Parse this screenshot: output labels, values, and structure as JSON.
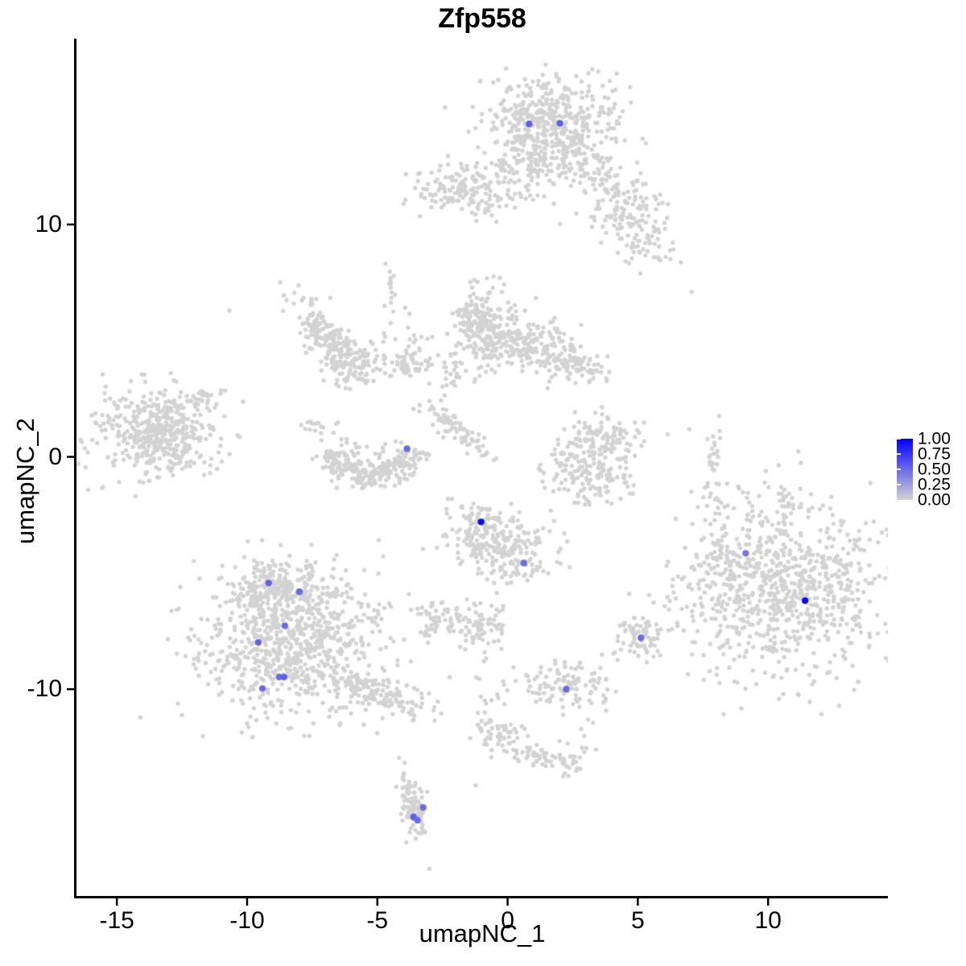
{
  "chart_data": {
    "type": "scatter",
    "title": "Zfp558",
    "xlabel": "umapNC_1",
    "ylabel": "umapNC_2",
    "xlim": [
      -16.55,
      14.6
    ],
    "ylim": [
      -18.9,
      18.0
    ],
    "grid": false,
    "xticks": [
      {
        "value": -15,
        "label": "-15"
      },
      {
        "value": -10,
        "label": "-10"
      },
      {
        "value": -5,
        "label": "-5"
      },
      {
        "value": 0,
        "label": "0"
      },
      {
        "value": 5,
        "label": "5"
      },
      {
        "value": 10,
        "label": "10"
      }
    ],
    "yticks": [
      {
        "value": 10,
        "label": "10"
      },
      {
        "value": 0,
        "label": "0"
      },
      {
        "value": -10,
        "label": "-10"
      }
    ],
    "legend": {
      "position": "right",
      "labels": [
        "1.00",
        "0.75",
        "0.50",
        "0.25",
        "0.00"
      ],
      "values": [
        1.0,
        0.75,
        0.5,
        0.25,
        0.0
      ],
      "low_color": "#D3D3D3",
      "high_color": "#0000FF"
    },
    "point_color_zero": "#D3D3D3",
    "clusters": [
      {
        "shape": "gauss",
        "cx": 1.7,
        "cy": 14.4,
        "sx": 1.25,
        "sy": 1.05,
        "rho": 0,
        "n": 480
      },
      {
        "shape": "gauss",
        "cx": 0.9,
        "cy": 12.6,
        "sx": 0.8,
        "sy": 0.5,
        "rho": 0,
        "n": 70
      },
      {
        "shape": "gauss",
        "cx": 3.4,
        "cy": 12.1,
        "sx": 0.7,
        "sy": 0.55,
        "rho": -0.4,
        "n": 70
      },
      {
        "shape": "gauss",
        "cx": 4.35,
        "cy": 10.4,
        "sx": 0.8,
        "sy": 0.75,
        "rho": 0,
        "n": 110
      },
      {
        "shape": "gauss",
        "cx": 5.3,
        "cy": 9.3,
        "sx": 0.5,
        "sy": 0.45,
        "rho": 0,
        "n": 45
      },
      {
        "shape": "gauss",
        "cx": -1.75,
        "cy": 11.5,
        "sx": 1.0,
        "sy": 0.55,
        "rho": 0,
        "n": 150
      },
      {
        "shape": "gauss",
        "cx": 0.3,
        "cy": 11.2,
        "sx": 0.8,
        "sy": 0.35,
        "rho": 0,
        "n": 22
      },
      {
        "shape": "gauss",
        "cx": -7.1,
        "cy": 5.3,
        "sx": 0.6,
        "sy": 0.8,
        "rho": -0.75,
        "n": 150
      },
      {
        "shape": "gauss",
        "cx": -5.95,
        "cy": 4.15,
        "sx": 0.55,
        "sy": 0.5,
        "rho": 0,
        "n": 100
      },
      {
        "shape": "gauss",
        "cx": -4.0,
        "cy": 3.95,
        "sx": 0.7,
        "sy": 0.3,
        "rho": 0,
        "n": 55
      },
      {
        "shape": "gauss",
        "cx": -4.55,
        "cy": 6.9,
        "sx": 0.16,
        "sy": 0.9,
        "rho": 0.3,
        "n": 18
      },
      {
        "shape": "gauss",
        "cx": -3.6,
        "cy": 5.0,
        "sx": 0.35,
        "sy": 0.7,
        "rho": -0.5,
        "n": 16
      },
      {
        "shape": "gauss",
        "cx": -0.95,
        "cy": 5.6,
        "sx": 0.6,
        "sy": 0.85,
        "rho": 0,
        "n": 240
      },
      {
        "shape": "gauss",
        "cx": 1.1,
        "cy": 4.75,
        "sx": 0.95,
        "sy": 0.6,
        "rho": -0.35,
        "n": 210
      },
      {
        "shape": "gauss",
        "cx": 2.8,
        "cy": 3.9,
        "sx": 0.5,
        "sy": 0.35,
        "rho": -0.3,
        "n": 55
      },
      {
        "shape": "gauss",
        "cx": -2.15,
        "cy": 3.6,
        "sx": 0.25,
        "sy": 0.5,
        "rho": 0,
        "n": 22
      },
      {
        "shape": "gauss",
        "cx": -3.1,
        "cy": 2.1,
        "sx": 0.3,
        "sy": 0.25,
        "rho": 0,
        "n": 8
      },
      {
        "shape": "gauss",
        "cx": -2.35,
        "cy": 1.5,
        "sx": 0.3,
        "sy": 0.3,
        "rho": 0,
        "n": 12
      },
      {
        "shape": "gauss",
        "cx": -1.7,
        "cy": 0.95,
        "sx": 0.6,
        "sy": 0.55,
        "rho": -0.85,
        "n": 55
      },
      {
        "shape": "arc",
        "cx": -5.3,
        "cy": 0.4,
        "rx": 1.5,
        "ry": 1.25,
        "a0": 185,
        "a1": 355,
        "jr": 0.22,
        "n": 240
      },
      {
        "shape": "gauss",
        "cx": -7.0,
        "cy": 1.2,
        "sx": 0.55,
        "sy": 0.3,
        "rho": 0,
        "n": 18
      },
      {
        "shape": "gauss",
        "cx": -5.3,
        "cy": 0.1,
        "sx": 0.8,
        "sy": 0.5,
        "rho": 0,
        "n": 30
      },
      {
        "shape": "gauss",
        "cx": -13.55,
        "cy": 1.15,
        "sx": 1.15,
        "sy": 0.9,
        "rho": 0,
        "n": 420
      },
      {
        "shape": "gauss",
        "cx": -11.8,
        "cy": 2.5,
        "sx": 0.5,
        "sy": 0.35,
        "rho": 0.6,
        "n": 28
      },
      {
        "shape": "gauss",
        "cx": -12.4,
        "cy": -0.2,
        "sx": 0.6,
        "sy": 0.2,
        "rho": 0,
        "n": 20
      },
      {
        "shape": "gauss",
        "cx": 3.5,
        "cy": 0.7,
        "sx": 0.9,
        "sy": 0.55,
        "rho": 0.3,
        "n": 130
      },
      {
        "shape": "gauss",
        "cx": 3.1,
        "cy": -0.85,
        "sx": 0.8,
        "sy": 0.55,
        "rho": 0,
        "n": 130
      },
      {
        "shape": "gauss",
        "cx": 7.9,
        "cy": -0.3,
        "sx": 0.14,
        "sy": 1.0,
        "rho": 0.3,
        "n": 30
      },
      {
        "shape": "gauss",
        "cx": -1.0,
        "cy": -2.75,
        "sx": 0.45,
        "sy": 0.4,
        "rho": 0,
        "n": 55
      },
      {
        "shape": "gauss",
        "cx": -0.3,
        "cy": -3.95,
        "sx": 1.05,
        "sy": 0.85,
        "rho": -0.3,
        "n": 220
      },
      {
        "shape": "gauss",
        "cx": 10.6,
        "cy": -5.7,
        "sx": 1.95,
        "sy": 1.85,
        "rho": 0,
        "n": 850
      },
      {
        "shape": "gauss",
        "cx": 9.9,
        "cy": -2.3,
        "sx": 1.3,
        "sy": 0.6,
        "rho": 0,
        "n": 45
      },
      {
        "shape": "gauss",
        "cx": 8.3,
        "cy": -4.4,
        "sx": 0.6,
        "sy": 0.8,
        "rho": 0,
        "n": 40
      },
      {
        "shape": "gauss",
        "cx": -8.35,
        "cy": -7.9,
        "sx": 1.8,
        "sy": 1.6,
        "rho": 0,
        "n": 820
      },
      {
        "shape": "gauss",
        "cx": -8.85,
        "cy": -5.6,
        "sx": 0.95,
        "sy": 0.65,
        "rho": 0,
        "n": 170
      },
      {
        "shape": "gauss",
        "cx": -5.0,
        "cy": -10.2,
        "sx": 1.15,
        "sy": 0.5,
        "rho": -0.75,
        "n": 140
      },
      {
        "shape": "gauss",
        "cx": -2.65,
        "cy": -7.0,
        "sx": 0.5,
        "sy": 0.45,
        "rho": 0,
        "n": 60
      },
      {
        "shape": "gauss",
        "cx": -1.0,
        "cy": -7.2,
        "sx": 0.55,
        "sy": 0.5,
        "rho": 0,
        "n": 70
      },
      {
        "shape": "gauss",
        "cx": 5.2,
        "cy": -7.8,
        "sx": 0.55,
        "sy": 0.6,
        "rho": 0.3,
        "n": 55
      },
      {
        "shape": "gauss",
        "cx": 4.85,
        "cy": -7.3,
        "sx": 0.3,
        "sy": 0.25,
        "rho": 0,
        "n": 15
      },
      {
        "shape": "gauss",
        "cx": 2.3,
        "cy": -9.85,
        "sx": 0.95,
        "sy": 0.55,
        "rho": 0,
        "n": 115
      },
      {
        "shape": "gauss",
        "cx": -0.8,
        "cy": -11.0,
        "sx": 0.3,
        "sy": 1.0,
        "rho": 0,
        "n": 28
      },
      {
        "shape": "gauss",
        "cx": -0.2,
        "cy": -12.05,
        "sx": 0.5,
        "sy": 0.4,
        "rho": 0,
        "n": 35
      },
      {
        "shape": "gauss",
        "cx": 1.1,
        "cy": -12.85,
        "sx": 0.8,
        "sy": 0.35,
        "rho": -0.5,
        "n": 45
      },
      {
        "shape": "gauss",
        "cx": 2.3,
        "cy": -12.9,
        "sx": 0.45,
        "sy": 0.45,
        "rho": 0,
        "n": 30
      },
      {
        "shape": "gauss",
        "cx": -3.7,
        "cy": -15.0,
        "sx": 0.3,
        "sy": 0.8,
        "rho": -0.5,
        "n": 95
      }
    ],
    "singles": [
      [
        -10.68,
        6.3
      ],
      [
        7.07,
        7.1
      ],
      [
        6.98,
        1.2
      ],
      [
        -3.89,
        -16.6
      ]
    ],
    "expressed_cells": [
      {
        "x": 0.83,
        "y": 14.33,
        "v": 0.55
      },
      {
        "x": 2.01,
        "y": 14.36,
        "v": 0.55
      },
      {
        "x": -3.86,
        "y": 0.35,
        "v": 0.5
      },
      {
        "x": -1.02,
        "y": -2.8,
        "v": 0.95
      },
      {
        "x": 0.62,
        "y": -4.57,
        "v": 0.5
      },
      {
        "x": 9.14,
        "y": -4.15,
        "v": 0.45
      },
      {
        "x": 11.42,
        "y": -6.19,
        "v": 0.95
      },
      {
        "x": -9.17,
        "y": -5.43,
        "v": 0.55
      },
      {
        "x": -7.99,
        "y": -5.81,
        "v": 0.5
      },
      {
        "x": -8.55,
        "y": -7.27,
        "v": 0.5
      },
      {
        "x": -9.57,
        "y": -7.99,
        "v": 0.55
      },
      {
        "x": -8.77,
        "y": -9.48,
        "v": 0.5
      },
      {
        "x": -8.58,
        "y": -9.48,
        "v": 0.55
      },
      {
        "x": -9.41,
        "y": -9.97,
        "v": 0.5
      },
      {
        "x": 5.12,
        "y": -7.79,
        "v": 0.5
      },
      {
        "x": 2.25,
        "y": -10.0,
        "v": 0.5
      },
      {
        "x": -3.24,
        "y": -15.09,
        "v": 0.5
      },
      {
        "x": -3.61,
        "y": -15.5,
        "v": 0.55
      },
      {
        "x": -3.46,
        "y": -15.64,
        "v": 0.5
      }
    ]
  }
}
